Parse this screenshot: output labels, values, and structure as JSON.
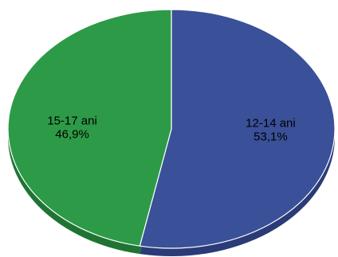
{
  "chart_data": {
    "type": "pie",
    "style": "3d",
    "slices": [
      {
        "name": "12-14 ani",
        "value": 53.1,
        "value_label": "53,1%",
        "color": "#3a5099",
        "side_color": "#2a3b77"
      },
      {
        "name": "15-17 ani",
        "value": 46.9,
        "value_label": "46,9%",
        "color": "#2d9a47",
        "side_color": "#1f7434"
      }
    ],
    "edge_color": "#ffffff",
    "legend": "none"
  }
}
